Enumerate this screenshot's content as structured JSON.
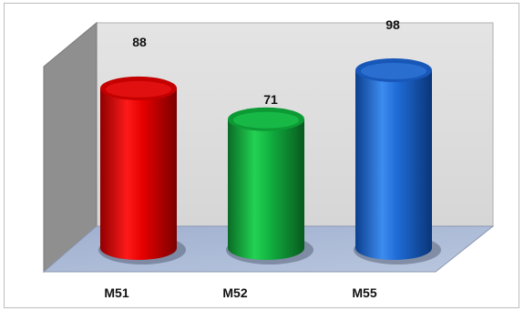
{
  "chart_data": {
    "type": "bar",
    "categories": [
      "M51",
      "M52",
      "M55"
    ],
    "values": [
      88,
      71,
      98
    ],
    "colors": [
      "#d90000",
      "#12a83e",
      "#1a63c8"
    ],
    "data_labels": [
      "88",
      "71",
      "98"
    ],
    "title": "",
    "xlabel": "",
    "ylabel": "",
    "ylim": [
      0,
      100
    ],
    "grid": false,
    "style": "3d-cylinder"
  }
}
